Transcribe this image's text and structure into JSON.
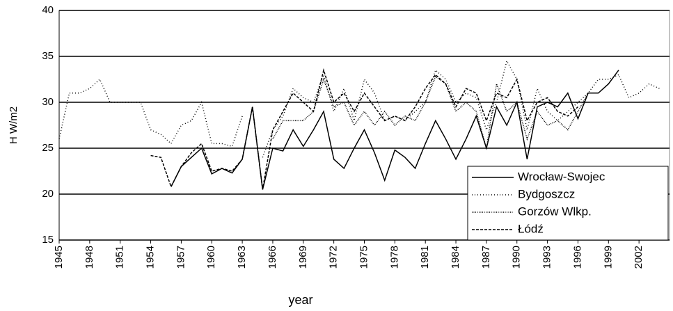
{
  "chart_data": {
    "type": "line",
    "x_label": "year",
    "y_label": "H W/m2",
    "x": [
      1945,
      1946,
      1947,
      1948,
      1949,
      1950,
      1951,
      1952,
      1953,
      1954,
      1955,
      1956,
      1957,
      1958,
      1959,
      1960,
      1961,
      1962,
      1963,
      1964,
      1965,
      1966,
      1967,
      1968,
      1969,
      1970,
      1971,
      1972,
      1973,
      1974,
      1975,
      1976,
      1977,
      1978,
      1979,
      1980,
      1981,
      1982,
      1983,
      1984,
      1985,
      1986,
      1987,
      1988,
      1989,
      1990,
      1991,
      1992,
      1993,
      1994,
      1995,
      1996,
      1997,
      1998,
      1999,
      2000,
      2001,
      2002,
      2003,
      2004
    ],
    "xlim": [
      1945,
      2005
    ],
    "xticks": [
      1945,
      1948,
      1951,
      1954,
      1957,
      1960,
      1963,
      1966,
      1969,
      1972,
      1975,
      1978,
      1981,
      1984,
      1987,
      1990,
      1993,
      1996,
      1999,
      2002
    ],
    "ylim": [
      15,
      40
    ],
    "yticks": [
      15,
      20,
      25,
      30,
      35,
      40
    ],
    "grid": true,
    "legend": "lower right",
    "series": [
      {
        "name": "Wrocław-Swojec",
        "color": "#000000",
        "style": "solid",
        "values": [
          null,
          null,
          null,
          null,
          null,
          null,
          null,
          null,
          null,
          null,
          null,
          20.8,
          23,
          24,
          25,
          22.2,
          22.8,
          22.3,
          23.8,
          29.5,
          20.5,
          25,
          24.7,
          27,
          25.2,
          27,
          29,
          23.8,
          22.8,
          25,
          27,
          24.5,
          21.5,
          24.8,
          24,
          22.8,
          25.5,
          28,
          26,
          23.8,
          26,
          28.5,
          25,
          29.5,
          27.5,
          30,
          23.8,
          29.5,
          30,
          29.5,
          31,
          28.2,
          31,
          31,
          32,
          33.5,
          null,
          null,
          null,
          null
        ]
      },
      {
        "name": "Bydgoszcz",
        "color": "#000000",
        "style": "dotted",
        "values": [
          26,
          31,
          31,
          31.5,
          32.5,
          30,
          30,
          30,
          30,
          27,
          26.5,
          25.5,
          27.5,
          28,
          30,
          25.5,
          25.5,
          25.2,
          28.5,
          null,
          24,
          27,
          28.5,
          31.5,
          30.5,
          30,
          33,
          29,
          31.5,
          28,
          32.5,
          31,
          28,
          28.5,
          28,
          29,
          30,
          33.5,
          32.5,
          30,
          31,
          30.5,
          27,
          30,
          34.5,
          32.5,
          27,
          31.5,
          29,
          28,
          29,
          30,
          31,
          32.5,
          32.5,
          33,
          30.5,
          31,
          32,
          31.5
        ]
      },
      {
        "name": "Gorzów Wlkp.",
        "color": "#000000",
        "style": "densedot",
        "values": [
          null,
          null,
          null,
          null,
          null,
          null,
          null,
          null,
          null,
          null,
          null,
          null,
          null,
          null,
          null,
          null,
          null,
          null,
          null,
          null,
          null,
          26,
          28,
          28,
          28,
          29,
          32.5,
          29.5,
          30,
          27.5,
          29,
          27.5,
          29,
          27.5,
          28.5,
          28,
          30,
          32.8,
          32,
          29,
          30,
          29,
          25,
          32,
          29,
          30,
          26,
          29,
          27.5,
          28,
          27,
          29,
          31,
          null,
          null,
          null,
          null,
          null,
          null,
          null
        ]
      },
      {
        "name": "Łódź",
        "color": "#000000",
        "style": "dashed",
        "values": [
          null,
          null,
          null,
          null,
          null,
          null,
          null,
          null,
          null,
          24.2,
          24,
          20.8,
          23,
          24.5,
          25.5,
          22.5,
          22.8,
          22.5,
          23.8,
          29.5,
          20.5,
          27,
          29,
          31,
          30,
          29,
          33.5,
          30,
          31,
          29,
          31,
          29.5,
          28,
          28.5,
          28,
          29.5,
          31.5,
          33,
          32,
          29.5,
          31.5,
          31,
          28,
          31,
          30.5,
          32.5,
          28,
          30,
          30.5,
          29,
          28.5,
          29.5,
          null,
          null,
          null,
          null,
          null,
          null,
          null,
          null
        ]
      }
    ]
  }
}
